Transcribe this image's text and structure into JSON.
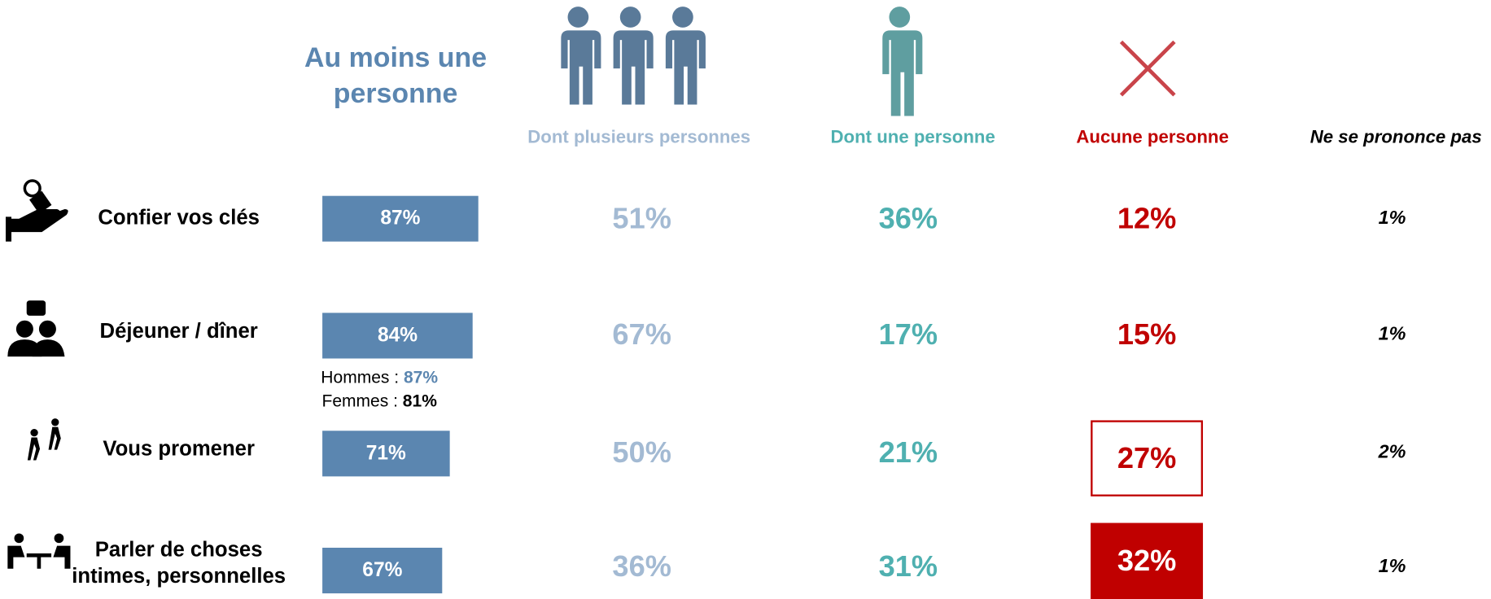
{
  "chart_data": {
    "type": "bar",
    "categories": [
      "Confier vos clés",
      "Déjeuner / dîner",
      "Vous promener",
      "Parler de choses intimes, personnelles"
    ],
    "series": [
      {
        "name": "Au moins une personne",
        "color": "#5b86b0",
        "values": [
          87,
          84,
          71,
          67
        ],
        "value_labels": [
          "87%",
          "84%",
          "71%",
          "67%"
        ]
      },
      {
        "name": "Dont plusieurs personnes",
        "color": "#a3bad3",
        "values": [
          51,
          67,
          50,
          36
        ],
        "value_labels": [
          "51%",
          "67%",
          "50%",
          "36%"
        ]
      },
      {
        "name": "Dont une personne",
        "color": "#4fb0b0",
        "values": [
          36,
          17,
          21,
          31
        ],
        "value_labels": [
          "36%",
          "17%",
          "21%",
          "31%"
        ]
      },
      {
        "name": "Aucune personne",
        "color": "#c00000",
        "values": [
          12,
          15,
          27,
          32
        ],
        "value_labels": [
          "12%",
          "15%",
          "27%",
          "32%"
        ],
        "emphasis": [
          null,
          null,
          "outline",
          "fill"
        ]
      },
      {
        "name": "Ne se prononce pas",
        "color": "#000000",
        "values": [
          1,
          1,
          2,
          1
        ],
        "value_labels": [
          "1%",
          "1%",
          "2%",
          "1%"
        ]
      }
    ],
    "annotations": [
      {
        "text": "Hommes :",
        "value": 87,
        "value_label": "87%",
        "color": "#5b86b0"
      },
      {
        "text": "Femmes :",
        "value": 81,
        "value_label": "81%",
        "color": "#000000"
      }
    ]
  }
}
